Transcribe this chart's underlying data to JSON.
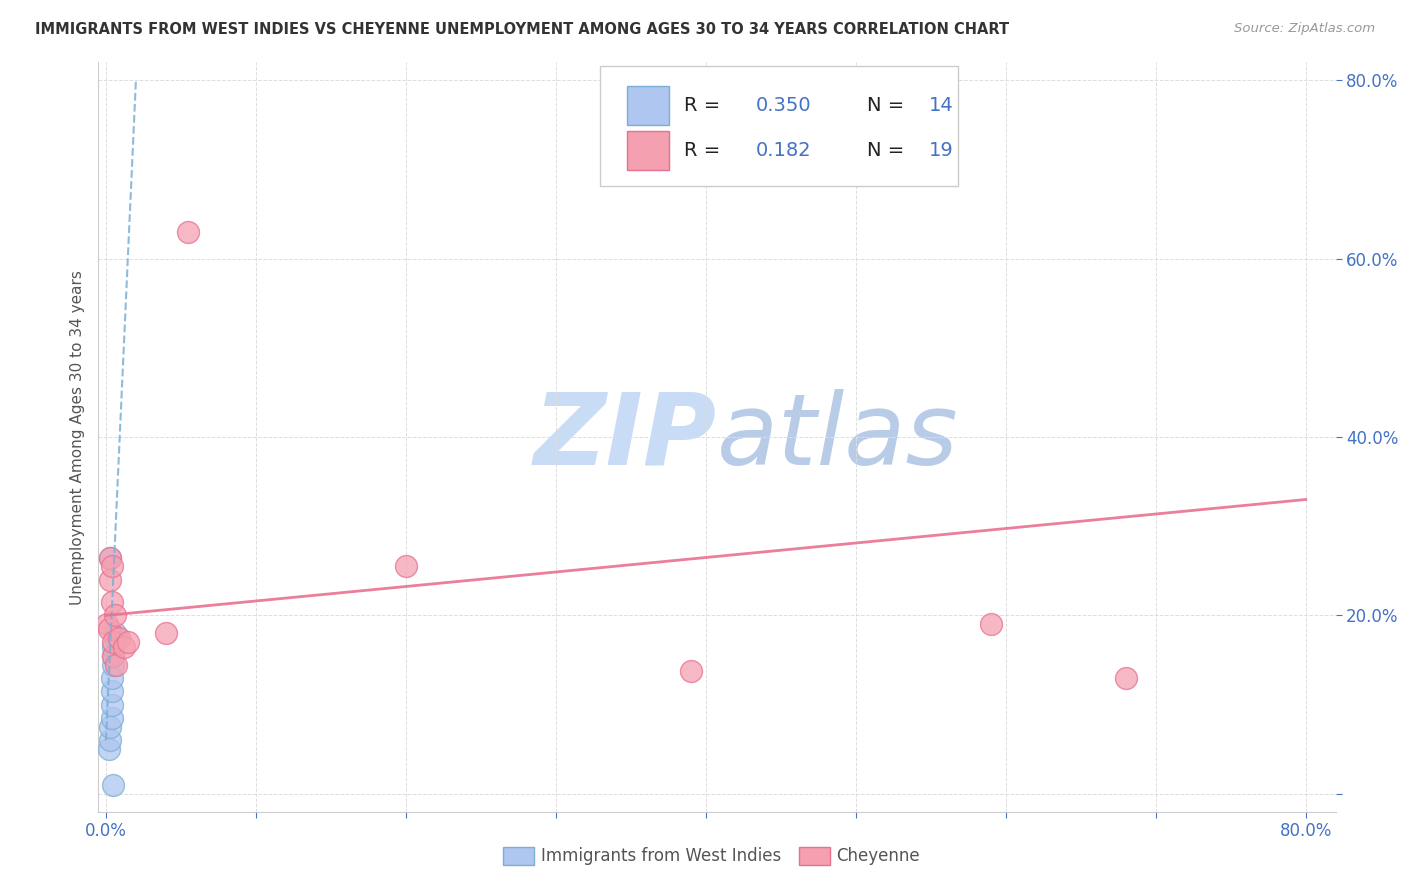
{
  "title": "IMMIGRANTS FROM WEST INDIES VS CHEYENNE UNEMPLOYMENT AMONG AGES 30 TO 34 YEARS CORRELATION CHART",
  "source": "Source: ZipAtlas.com",
  "ylabel": "Unemployment Among Ages 30 to 34 years",
  "xlim": [
    -0.005,
    0.82
  ],
  "ylim": [
    -0.02,
    0.82
  ],
  "xtick_positions": [
    0.0,
    0.1,
    0.2,
    0.3,
    0.4,
    0.5,
    0.6,
    0.7,
    0.8
  ],
  "ytick_positions": [
    0.0,
    0.2,
    0.4,
    0.6,
    0.8
  ],
  "xtick_labels": [
    "0.0%",
    "",
    "",
    "",
    "",
    "",
    "",
    "",
    "80.0%"
  ],
  "ytick_labels": [
    "",
    "20.0%",
    "40.0%",
    "60.0%",
    "80.0%"
  ],
  "color_blue": "#aec6f0",
  "color_pink": "#f4a0b0",
  "trend_blue_color": "#7bafd4",
  "trend_pink_color": "#e87090",
  "axis_label_color": "#4472c4",
  "title_color": "#333333",
  "source_color": "#999999",
  "grid_color": "#dddddd",
  "background_color": "#ffffff",
  "watermark_color": "#c8dcf5",
  "blue_x": [
    0.002,
    0.003,
    0.003,
    0.004,
    0.004,
    0.004,
    0.004,
    0.005,
    0.005,
    0.005,
    0.005,
    0.006,
    0.007,
    0.003
  ],
  "blue_y": [
    0.05,
    0.06,
    0.075,
    0.085,
    0.1,
    0.115,
    0.13,
    0.145,
    0.155,
    0.165,
    0.01,
    0.18,
    0.175,
    0.265
  ],
  "pink_x": [
    0.001,
    0.002,
    0.003,
    0.003,
    0.004,
    0.004,
    0.005,
    0.005,
    0.006,
    0.007,
    0.009,
    0.012,
    0.015,
    0.04,
    0.055,
    0.2,
    0.39,
    0.59,
    0.68
  ],
  "pink_y": [
    0.19,
    0.185,
    0.24,
    0.265,
    0.215,
    0.255,
    0.155,
    0.17,
    0.2,
    0.145,
    0.175,
    0.165,
    0.17,
    0.18,
    0.63,
    0.255,
    0.138,
    0.19,
    0.13
  ],
  "blue_trendline_x": [
    0.0,
    0.02
  ],
  "blue_trendline_y": [
    0.06,
    0.8
  ],
  "pink_trendline_x": [
    0.0,
    0.8
  ],
  "pink_trendline_y": [
    0.2,
    0.33
  ],
  "legend_r1": "0.350",
  "legend_n1": "14",
  "legend_r2": "0.182",
  "legend_n2": "19",
  "point_size": 250,
  "point_alpha": 0.75,
  "point_linewidth": 1.0,
  "bottom_legend_label1": "Immigrants from West Indies",
  "bottom_legend_label2": "Cheyenne"
}
